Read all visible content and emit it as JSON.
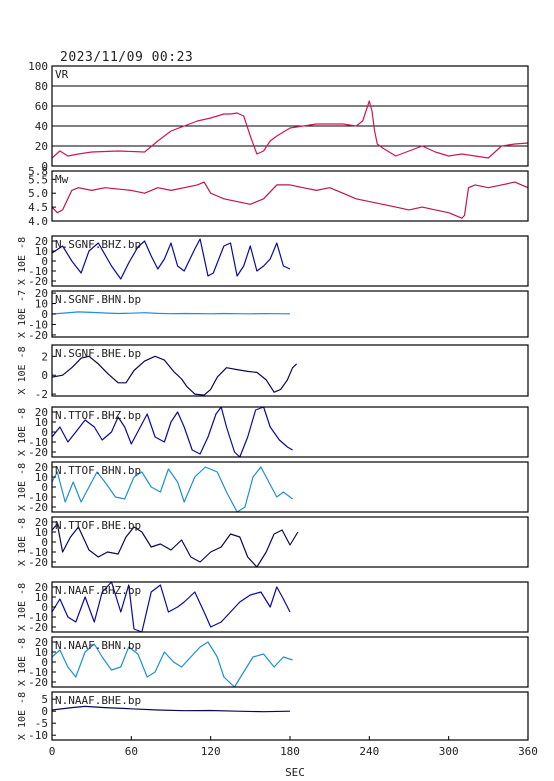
{
  "header": {
    "timestamp": "2023/11/09  00:23"
  },
  "colors": {
    "axes": "#000000",
    "vr": "#d4145a",
    "mw": "#c0144a",
    "bhz": "#0a0aa0",
    "bhn": "#1e8fd8",
    "bhe": "#0a0a50",
    "grid": "#000000"
  },
  "chart_data": [
    {
      "id": "vr",
      "type": "line",
      "label": "VR",
      "ylim": [
        0,
        100
      ],
      "yticks": [
        "100",
        "80",
        "60",
        "40",
        "20",
        "0"
      ],
      "grid": true,
      "x": [
        0,
        6,
        12,
        20,
        30,
        50,
        70,
        80,
        90,
        100,
        110,
        120,
        125,
        130,
        135,
        140,
        145,
        150,
        155,
        160,
        165,
        170,
        180,
        190,
        200,
        210,
        220,
        230,
        235,
        240,
        242,
        244,
        246,
        250,
        260,
        270,
        280,
        290,
        300,
        310,
        320,
        330,
        340,
        350,
        360
      ],
      "values": [
        8,
        15,
        10,
        12,
        14,
        15,
        14,
        25,
        35,
        40,
        45,
        48,
        50,
        52,
        52,
        53,
        50,
        30,
        12,
        15,
        25,
        30,
        38,
        40,
        42,
        42,
        42,
        40,
        45,
        65,
        55,
        35,
        22,
        18,
        10,
        15,
        20,
        14,
        10,
        12,
        10,
        8,
        20,
        22,
        23
      ]
    },
    {
      "id": "mw",
      "type": "line",
      "label": "Mw",
      "ylim": [
        4.0,
        5.8
      ],
      "yticks": [
        "5.8",
        "5.5",
        "5.0",
        "4.5",
        "4.0"
      ],
      "grid": false,
      "x": [
        0,
        4,
        8,
        15,
        20,
        30,
        40,
        60,
        70,
        80,
        90,
        100,
        110,
        115,
        120,
        125,
        130,
        140,
        150,
        160,
        170,
        180,
        190,
        200,
        210,
        220,
        230,
        240,
        250,
        260,
        270,
        280,
        290,
        300,
        310,
        312,
        315,
        320,
        330,
        340,
        350,
        360
      ],
      "values": [
        4.5,
        4.3,
        4.4,
        5.1,
        5.2,
        5.1,
        5.2,
        5.1,
        5.0,
        5.2,
        5.1,
        5.2,
        5.3,
        5.4,
        5.0,
        4.9,
        4.8,
        4.7,
        4.6,
        4.8,
        5.3,
        5.3,
        5.2,
        5.1,
        5.2,
        5.0,
        4.8,
        4.7,
        4.6,
        4.5,
        4.4,
        4.5,
        4.4,
        4.3,
        4.1,
        4.2,
        5.2,
        5.3,
        5.2,
        5.3,
        5.4,
        5.2
      ]
    },
    {
      "id": "sgnf-bhz",
      "type": "line",
      "label": "N.SGNF.BHZ.bp",
      "yunit": "X 10E -8",
      "ylim": [
        -25,
        25
      ],
      "yticks": [
        "20",
        "10",
        "0",
        "-10",
        "-20"
      ],
      "color": "bhz",
      "x": [
        0,
        8,
        15,
        22,
        28,
        35,
        45,
        52,
        58,
        65,
        70,
        75,
        80,
        85,
        90,
        95,
        100,
        108,
        112,
        118,
        122,
        130,
        135,
        140,
        145,
        150,
        155,
        160,
        165,
        170,
        175,
        180
      ],
      "values": [
        8,
        15,
        0,
        -12,
        10,
        18,
        -5,
        -18,
        -2,
        14,
        20,
        5,
        -8,
        2,
        18,
        -5,
        -10,
        12,
        22,
        -15,
        -12,
        15,
        18,
        -15,
        -5,
        15,
        -10,
        -5,
        2,
        18,
        -5,
        -8
      ]
    },
    {
      "id": "sgnf-bhn",
      "type": "line",
      "label": "N.SGNF.BHN.bp",
      "yunit": "X 10E -7",
      "ylim": [
        -22,
        22
      ],
      "yticks": [
        "20",
        "10",
        "0",
        "-10",
        "-20"
      ],
      "color": "bhn",
      "x": [
        0,
        10,
        20,
        30,
        40,
        50,
        60,
        70,
        80,
        90,
        100,
        110,
        120,
        130,
        140,
        150,
        160,
        170,
        180
      ],
      "values": [
        0,
        1,
        2,
        1.5,
        1,
        0.5,
        0.8,
        1.2,
        0.6,
        0.3,
        0.5,
        0.4,
        0.2,
        0.5,
        0.3,
        0.2,
        0.4,
        0.3,
        0.2
      ]
    },
    {
      "id": "sgnf-bhe",
      "type": "line",
      "label": "N.SGNF.BHE.bp",
      "yunit": "X 10E -8",
      "ylim": [
        -2.2,
        3.2
      ],
      "yticks": [
        "2",
        "0",
        "-2"
      ],
      "color": "bhe",
      "x": [
        0,
        8,
        15,
        22,
        28,
        35,
        42,
        50,
        56,
        62,
        70,
        78,
        85,
        92,
        98,
        102,
        108,
        115,
        120,
        125,
        132,
        140,
        148,
        155,
        162,
        168,
        173,
        178,
        182,
        185
      ],
      "values": [
        -0.2,
        0,
        0.8,
        1.8,
        2,
        1.2,
        0.2,
        -0.8,
        -0.8,
        0.5,
        1.5,
        2,
        1.6,
        0.4,
        -0.4,
        -1.2,
        -2,
        -2.1,
        -1.5,
        -0.2,
        0.8,
        0.6,
        0.4,
        0.3,
        -0.5,
        -1.8,
        -1.5,
        -0.5,
        0.8,
        1.2
      ]
    },
    {
      "id": "ttof-bhz",
      "type": "line",
      "label": "N.TTOF.BHZ.bp",
      "yunit": "X 10E -8",
      "ylim": [
        -25,
        25
      ],
      "yticks": [
        "20",
        "10",
        "0",
        "-10",
        "-20"
      ],
      "color": "bhz",
      "x": [
        0,
        6,
        12,
        18,
        25,
        32,
        38,
        45,
        50,
        55,
        60,
        68,
        72,
        78,
        85,
        90,
        95,
        100,
        106,
        112,
        118,
        124,
        128,
        132,
        138,
        142,
        148,
        154,
        160,
        165,
        172,
        178,
        182
      ],
      "values": [
        -5,
        5,
        -10,
        0,
        12,
        5,
        -8,
        0,
        15,
        5,
        -12,
        8,
        18,
        -5,
        -10,
        10,
        20,
        5,
        -18,
        -22,
        -5,
        18,
        25,
        5,
        -20,
        -25,
        -5,
        22,
        25,
        5,
        -8,
        -15,
        -18
      ]
    },
    {
      "id": "ttof-bhn",
      "type": "line",
      "label": "N.TTOF.BHN.bp",
      "yunit": "X 10E -8",
      "ylim": [
        -25,
        25
      ],
      "yticks": [
        "20",
        "10",
        "0",
        "-10",
        "-20"
      ],
      "color": "bhn",
      "x": [
        0,
        4,
        10,
        16,
        22,
        28,
        34,
        40,
        48,
        55,
        62,
        68,
        75,
        82,
        88,
        95,
        100,
        108,
        116,
        125,
        132,
        140,
        146,
        152,
        158,
        164,
        170,
        175,
        182
      ],
      "values": [
        5,
        15,
        -15,
        5,
        -15,
        0,
        15,
        5,
        -10,
        -12,
        10,
        15,
        0,
        -5,
        18,
        5,
        -15,
        10,
        20,
        15,
        -5,
        -25,
        -20,
        10,
        20,
        5,
        -10,
        -5,
        -12
      ]
    },
    {
      "id": "ttof-bhe",
      "type": "line",
      "label": "N.TTOF.BHE.bp",
      "yunit": "X 10E -8",
      "ylim": [
        -25,
        25
      ],
      "yticks": [
        "20",
        "10",
        "0",
        "-10",
        "-20"
      ],
      "color": "bhe",
      "x": [
        0,
        4,
        8,
        14,
        20,
        28,
        35,
        42,
        50,
        56,
        62,
        68,
        75,
        82,
        90,
        98,
        105,
        112,
        120,
        128,
        135,
        142,
        148,
        155,
        162,
        168,
        174,
        180,
        186
      ],
      "values": [
        12,
        18,
        -10,
        5,
        15,
        -8,
        -15,
        -10,
        -12,
        5,
        15,
        10,
        -5,
        -2,
        -8,
        2,
        -15,
        -20,
        -10,
        -5,
        8,
        5,
        -15,
        -25,
        -10,
        8,
        12,
        -3,
        10
      ]
    },
    {
      "id": "naaf-bhz",
      "type": "line",
      "label": "N.NAAF.BHZ.bp",
      "yunit": "X 10E -8",
      "ylim": [
        -25,
        25
      ],
      "yticks": [
        "20",
        "10",
        "0",
        "-10",
        "-20"
      ],
      "color": "bhz",
      "x": [
        0,
        6,
        12,
        18,
        25,
        32,
        38,
        45,
        52,
        58,
        62,
        68,
        75,
        82,
        88,
        95,
        100,
        108,
        115,
        120,
        128,
        135,
        142,
        150,
        158,
        165,
        170,
        175,
        180
      ],
      "values": [
        -5,
        8,
        -10,
        -15,
        10,
        -15,
        15,
        25,
        -5,
        22,
        -22,
        -25,
        15,
        22,
        -5,
        0,
        5,
        15,
        -5,
        -20,
        -15,
        -5,
        5,
        12,
        15,
        0,
        20,
        8,
        -5
      ]
    },
    {
      "id": "naaf-bhn",
      "type": "line",
      "label": "N.NAAF.BHN.bp",
      "yunit": "X 10E -8",
      "ylim": [
        -25,
        25
      ],
      "yticks": [
        "20",
        "10",
        "0",
        "-10",
        "-20"
      ],
      "color": "bhn",
      "x": [
        0,
        6,
        12,
        18,
        25,
        32,
        38,
        45,
        52,
        58,
        65,
        72,
        78,
        85,
        92,
        98,
        105,
        112,
        118,
        125,
        130,
        138,
        145,
        152,
        160,
        168,
        175,
        182
      ],
      "values": [
        5,
        12,
        -5,
        -15,
        10,
        18,
        5,
        -8,
        -5,
        15,
        8,
        -15,
        -10,
        10,
        0,
        -5,
        5,
        15,
        20,
        5,
        -15,
        -25,
        -10,
        5,
        8,
        -5,
        5,
        2
      ]
    },
    {
      "id": "naaf-bhe",
      "type": "line",
      "label": "N.NAAF.BHE.bp",
      "yunit": "X 10E -8",
      "ylim": [
        -12,
        8
      ],
      "yticks": [
        "5",
        "0",
        "-5",
        "-10"
      ],
      "color": "bhe",
      "x": [
        0,
        15,
        25,
        40,
        60,
        80,
        100,
        120,
        140,
        160,
        180
      ],
      "values": [
        0.5,
        1.5,
        2,
        1.5,
        1,
        0.5,
        0.2,
        0.3,
        0,
        -0.2,
        0
      ]
    }
  ],
  "xaxis": {
    "label": "SEC",
    "ticks": [
      "0",
      "60",
      "120",
      "180",
      "240",
      "300",
      "360"
    ],
    "xlim": [
      0,
      360
    ]
  }
}
